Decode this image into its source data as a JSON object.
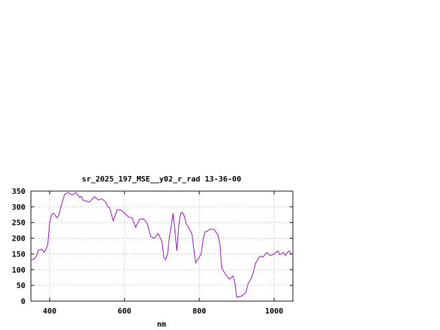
{
  "chart_data": {
    "type": "line",
    "title": "sr_2025_197_MSE__y02_r_rad 13-36-00",
    "xlabel": "nm",
    "ylabel": "",
    "xlim": [
      350,
      1050
    ],
    "ylim": [
      0,
      350
    ],
    "xticks": [
      400,
      600,
      800,
      1000
    ],
    "yticks": [
      0,
      50,
      100,
      150,
      200,
      250,
      300,
      350
    ],
    "grid": true,
    "series": [
      {
        "color": "#9400d3",
        "x": [
          350,
          360,
          365,
          370,
          380,
          385,
          390,
          395,
          400,
          405,
          410,
          420,
          425,
          430,
          440,
          450,
          460,
          470,
          480,
          485,
          490,
          500,
          505,
          510,
          520,
          530,
          540,
          550,
          555,
          560,
          570,
          580,
          590,
          600,
          610,
          620,
          630,
          640,
          650,
          660,
          670,
          680,
          690,
          700,
          705,
          710,
          715,
          720,
          725,
          730,
          740,
          745,
          750,
          755,
          760,
          765,
          770,
          775,
          780,
          790,
          800,
          805,
          810,
          815,
          820,
          830,
          840,
          850,
          855,
          860,
          870,
          880,
          890,
          895,
          900,
          910,
          915,
          920,
          925,
          930,
          935,
          940,
          945,
          950,
          960,
          965,
          970,
          980,
          990,
          1000,
          1010,
          1015,
          1020,
          1025,
          1030,
          1035,
          1040,
          1045,
          1050
        ],
        "y": [
          130,
          135,
          145,
          163,
          165,
          155,
          165,
          180,
          250,
          275,
          280,
          265,
          275,
          300,
          340,
          345,
          338,
          345,
          330,
          333,
          320,
          318,
          315,
          320,
          332,
          322,
          325,
          315,
          300,
          298,
          255,
          290,
          290,
          280,
          268,
          265,
          235,
          260,
          262,
          250,
          205,
          200,
          215,
          190,
          140,
          132,
          150,
          205,
          240,
          280,
          160,
          240,
          280,
          282,
          270,
          245,
          238,
          225,
          215,
          122,
          140,
          150,
          195,
          220,
          222,
          230,
          228,
          210,
          180,
          105,
          85,
          70,
          80,
          60,
          12,
          15,
          18,
          22,
          30,
          55,
          65,
          75,
          95,
          120,
          140,
          143,
          140,
          155,
          145,
          150,
          160,
          148,
          150,
          155,
          145,
          155,
          160,
          150,
          150
        ]
      }
    ]
  }
}
